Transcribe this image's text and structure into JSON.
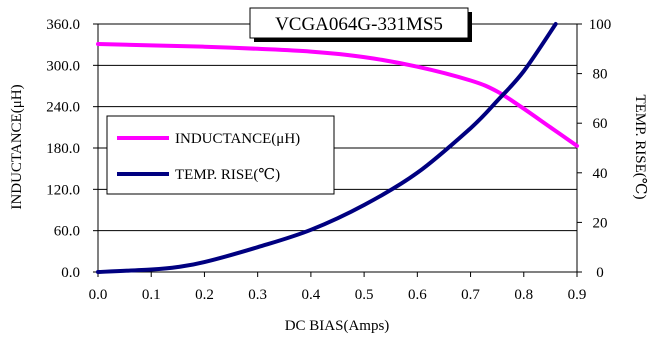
{
  "chart_data": {
    "type": "line",
    "title": "VCGA064G-331MS5",
    "xlabel": "DC BIAS(Amps)",
    "ylabel_left": "INDUCTANCE(μH)",
    "ylabel_right": "TEMP. RISE(℃)",
    "xlim": [
      0,
      0.9
    ],
    "ylim_left": [
      0,
      360
    ],
    "ylim_right": [
      0,
      100
    ],
    "x_ticks": [
      "0.0",
      "0.1",
      "0.2",
      "0.3",
      "0.4",
      "0.5",
      "0.6",
      "0.7",
      "0.8",
      "0.9"
    ],
    "y_left_ticks": [
      "0.0",
      "60.0",
      "120.0",
      "180.0",
      "240.0",
      "300.0",
      "360.0"
    ],
    "y_right_ticks": [
      "0",
      "20",
      "40",
      "60",
      "80",
      "100"
    ],
    "grid": "horizontal",
    "legend_position": "middle-left",
    "series": [
      {
        "name": "INDUCTANCE(μH)",
        "axis": "left",
        "color": "#ff00ff",
        "x": [
          0,
          0.1,
          0.2,
          0.3,
          0.4,
          0.5,
          0.6,
          0.7,
          0.75,
          0.8,
          0.85,
          0.9
        ],
        "values": [
          331,
          329,
          327,
          324,
          320,
          312,
          298,
          278,
          262,
          237,
          210,
          183
        ]
      },
      {
        "name": "TEMP. RISE(℃)",
        "axis": "right",
        "color": "#000080",
        "x": [
          0,
          0.1,
          0.15,
          0.2,
          0.3,
          0.4,
          0.5,
          0.6,
          0.7,
          0.75,
          0.8,
          0.86
        ],
        "values": [
          0,
          1,
          2,
          4,
          10,
          17,
          27,
          40,
          58,
          69,
          81,
          100
        ]
      }
    ]
  }
}
